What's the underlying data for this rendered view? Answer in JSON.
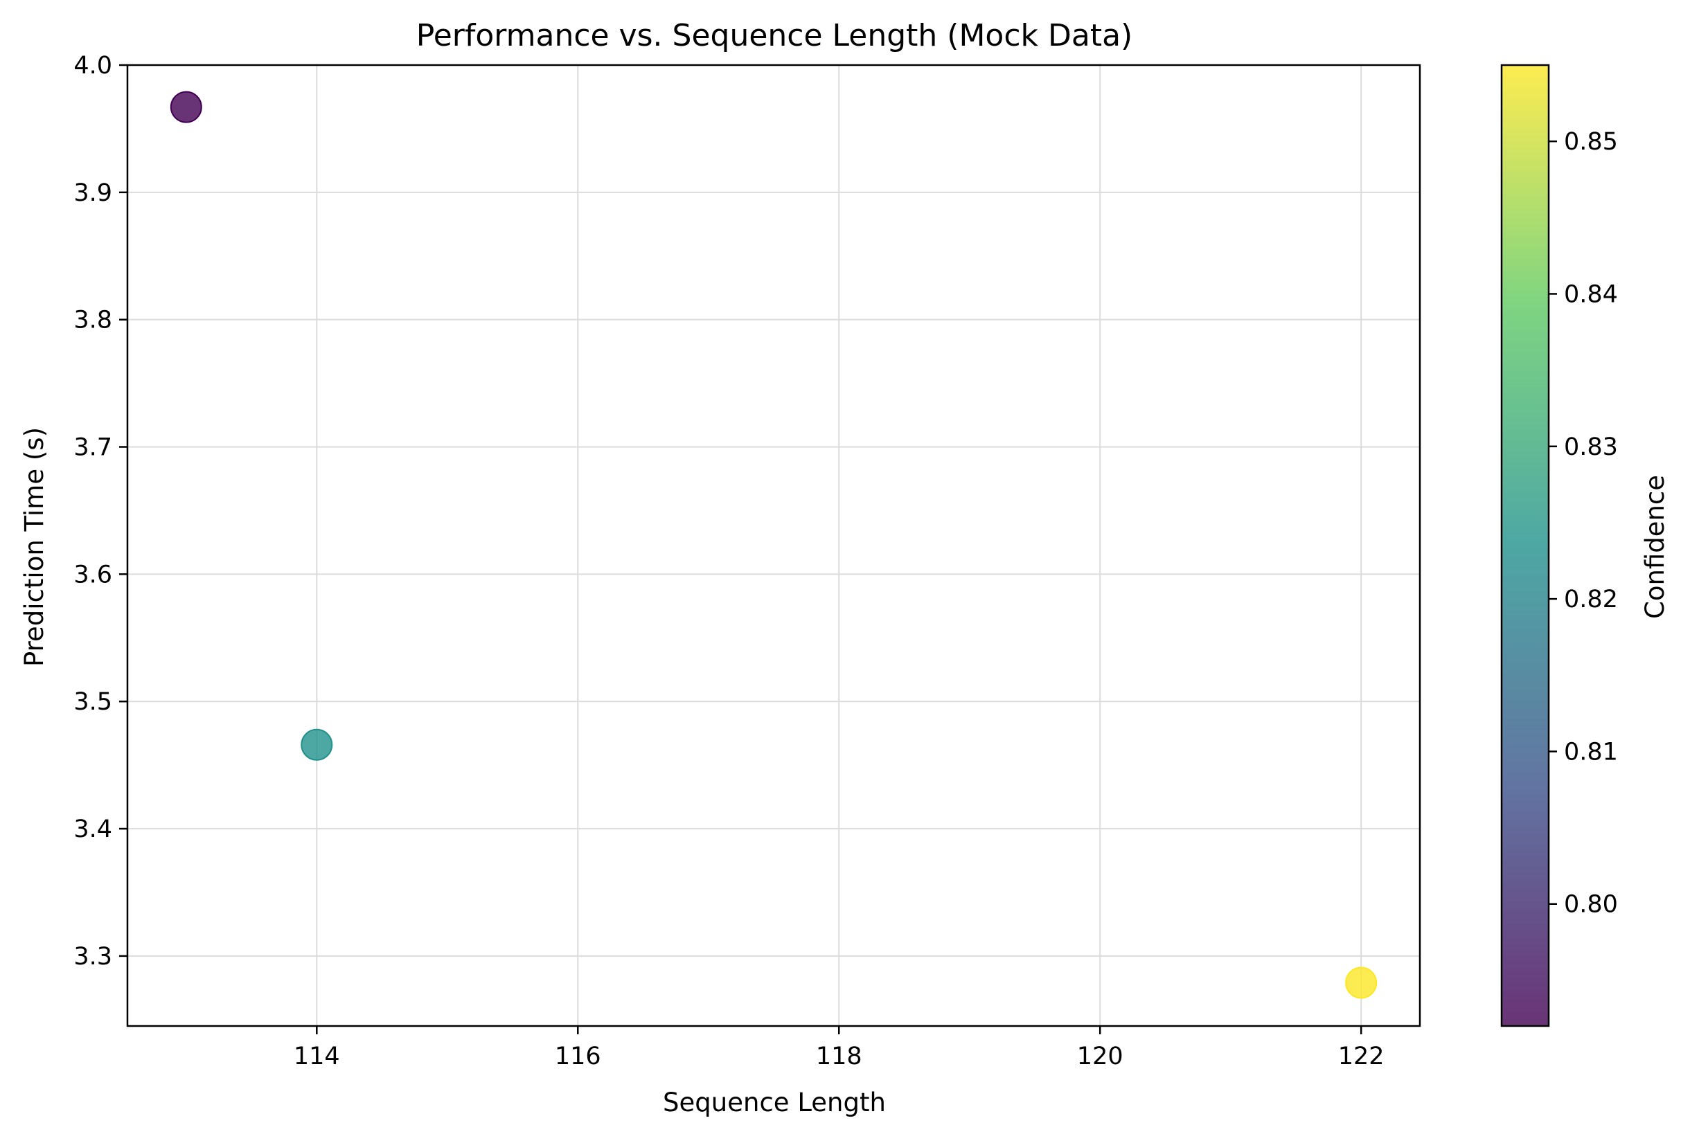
{
  "chart_data": {
    "type": "scatter",
    "title": "Performance vs. Sequence Length (Mock Data)",
    "xlabel": "Sequence Length",
    "ylabel": "Prediction Time (s)",
    "colorbar_label": "Confidence",
    "xlim": [
      112.55,
      122.45
    ],
    "ylim": [
      3.245,
      4.0
    ],
    "xticks": [
      114,
      116,
      118,
      120,
      122
    ],
    "xtick_labels": [
      "114",
      "116",
      "118",
      "120",
      "122"
    ],
    "yticks": [
      3.3,
      3.4,
      3.5,
      3.6,
      3.7,
      3.8,
      3.9,
      4.0
    ],
    "ytick_labels": [
      "3.3",
      "3.4",
      "3.5",
      "3.6",
      "3.7",
      "3.8",
      "3.9",
      "4.0"
    ],
    "colorbar_range": [
      0.792,
      0.855
    ],
    "colorbar_ticks": [
      0.8,
      0.81,
      0.82,
      0.83,
      0.84,
      0.85
    ],
    "colorbar_tick_labels": [
      "0.80",
      "0.81",
      "0.82",
      "0.83",
      "0.84",
      "0.85"
    ],
    "colormap": "viridis",
    "colormap_stops": [
      "#440154",
      "#3b528b",
      "#21918c",
      "#5ec962",
      "#fde725"
    ],
    "grid": true,
    "points": [
      {
        "x": 113,
        "y": 3.967,
        "confidence": 0.792,
        "color": "#440154"
      },
      {
        "x": 114,
        "y": 3.466,
        "confidence": 0.823,
        "color": "#21918c"
      },
      {
        "x": 122,
        "y": 3.279,
        "confidence": 0.855,
        "color": "#fde725"
      }
    ]
  }
}
